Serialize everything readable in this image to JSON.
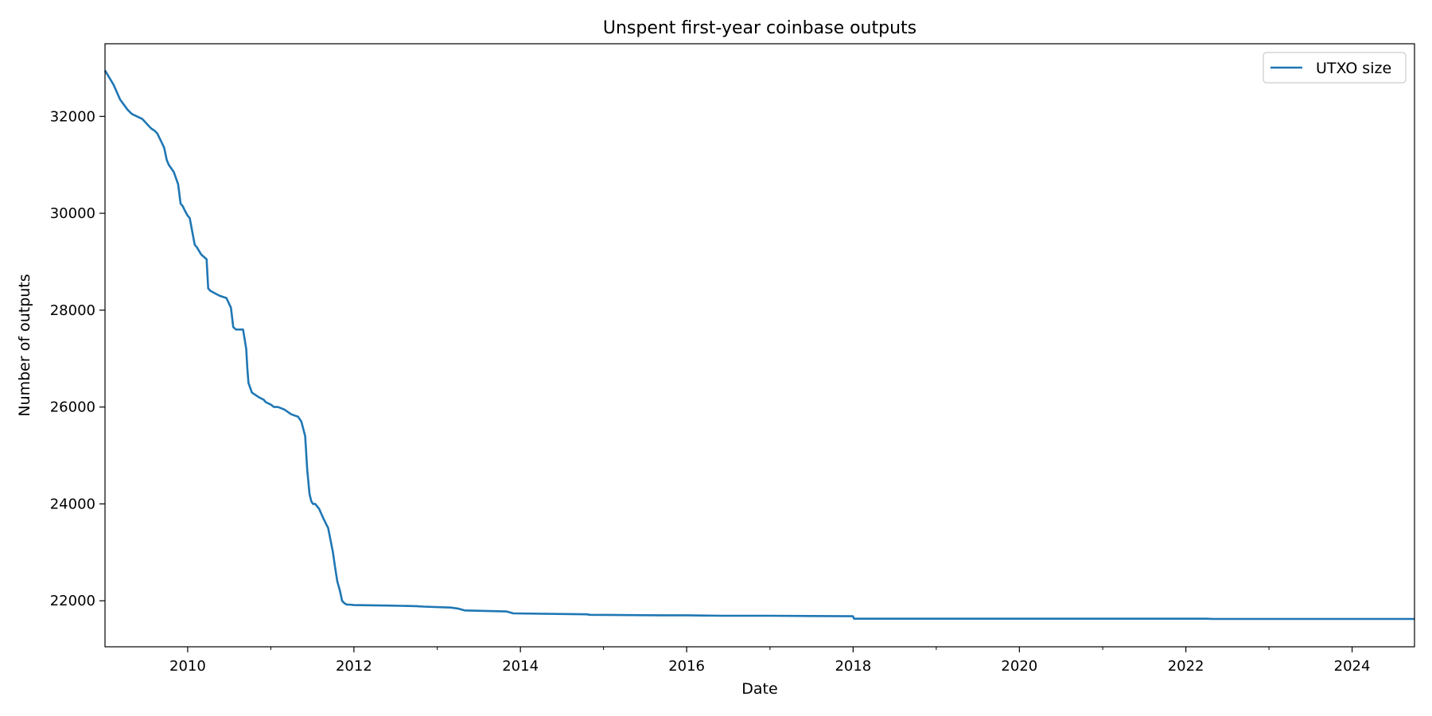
{
  "chart_data": {
    "type": "line",
    "title": "Unspent first-year coinbase outputs",
    "xlabel": "Date",
    "ylabel": "Number of outputs",
    "xlim": [
      "2009-01-03",
      "2024-10-01"
    ],
    "ylim": [
      21050,
      33500
    ],
    "x_ticks": [
      "2010",
      "2012",
      "2014",
      "2016",
      "2018",
      "2020",
      "2022",
      "2024"
    ],
    "y_ticks": [
      22000,
      24000,
      26000,
      28000,
      30000,
      32000
    ],
    "minor_x_ticks": [
      "2009",
      "2011",
      "2013",
      "2015",
      "2017",
      "2019",
      "2021",
      "2023"
    ],
    "grid": false,
    "legend": {
      "position": "top-right",
      "entries": [
        "UTXO size"
      ]
    },
    "colors": {
      "series": "#1f77b4",
      "axes": "#000000",
      "legend_border": "#cccccc"
    },
    "series": [
      {
        "name": "UTXO size",
        "x": [
          "2009-01-03",
          "2009-02-10",
          "2009-03-10",
          "2009-04-10",
          "2009-04-20",
          "2009-05-01",
          "2009-06-15",
          "2009-07-15",
          "2009-07-25",
          "2009-08-10",
          "2009-08-20",
          "2009-09-10",
          "2009-09-20",
          "2009-10-01",
          "2009-10-10",
          "2009-11-01",
          "2009-11-20",
          "2009-12-01",
          "2009-12-10",
          "2009-12-20",
          "2010-01-01",
          "2010-01-10",
          "2010-02-01",
          "2010-02-10",
          "2010-03-01",
          "2010-03-25",
          "2010-04-01",
          "2010-04-10",
          "2010-05-20",
          "2010-06-20",
          "2010-07-10",
          "2010-07-20",
          "2010-08-01",
          "2010-09-01",
          "2010-09-15",
          "2010-09-20",
          "2010-09-25",
          "2010-10-10",
          "2010-11-10",
          "2010-12-01",
          "2010-12-10",
          "2011-01-01",
          "2011-01-15",
          "2011-02-01",
          "2011-03-01",
          "2011-04-01",
          "2011-05-01",
          "2011-05-15",
          "2011-06-01",
          "2011-06-10",
          "2011-06-20",
          "2011-06-28",
          "2011-07-05",
          "2011-07-15",
          "2011-08-01",
          "2011-08-20",
          "2011-09-10",
          "2011-10-01",
          "2011-10-10",
          "2011-10-20",
          "2011-11-01",
          "2011-11-10",
          "2011-11-20",
          "2011-12-01",
          "2011-12-15",
          "2012-01-01",
          "2012-06-01",
          "2012-10-01",
          "2012-11-01",
          "2013-03-01",
          "2013-04-01",
          "2013-05-01",
          "2013-11-01",
          "2013-12-01",
          "2014-10-20",
          "2014-11-01",
          "2015-09-01",
          "2016-01-01",
          "2016-06-01",
          "2017-01-01",
          "2017-12-31",
          "2018-01-05",
          "2022-04-01",
          "2022-05-01",
          "2024-10-01"
        ],
        "values": [
          32950,
          32650,
          32350,
          32150,
          32100,
          32050,
          31950,
          31800,
          31750,
          31700,
          31650,
          31450,
          31350,
          31100,
          31000,
          30850,
          30600,
          30200,
          30150,
          30050,
          29950,
          29900,
          29350,
          29300,
          29150,
          29050,
          28450,
          28400,
          28300,
          28250,
          28050,
          27650,
          27600,
          27600,
          27200,
          26800,
          26500,
          26300,
          26200,
          26150,
          26100,
          26050,
          26000,
          26000,
          25950,
          25850,
          25800,
          25700,
          25400,
          24700,
          24200,
          24050,
          24000,
          24000,
          23900,
          23700,
          23500,
          23000,
          22700,
          22400,
          22200,
          22000,
          21950,
          21920,
          21920,
          21910,
          21900,
          21890,
          21880,
          21860,
          21840,
          21800,
          21780,
          21740,
          21720,
          21710,
          21700,
          21700,
          21690,
          21690,
          21680,
          21630,
          21630,
          21625,
          21625
        ]
      }
    ]
  }
}
